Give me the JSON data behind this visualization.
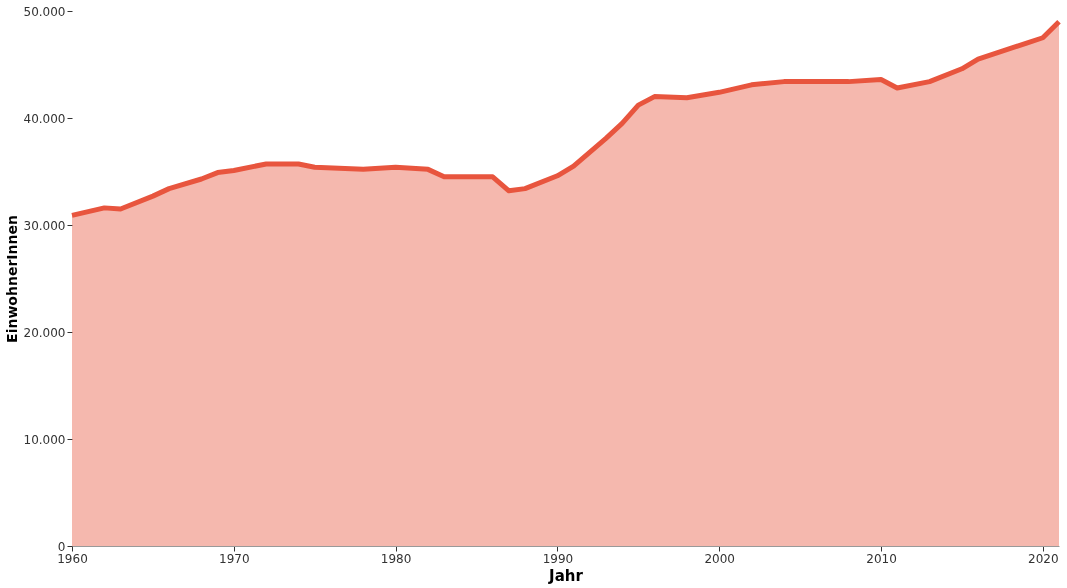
{
  "chart_data": {
    "type": "area",
    "xlabel": "Jahr",
    "ylabel": "EinwohnerInnen",
    "x": [
      1960,
      1962,
      1963,
      1965,
      1966,
      1968,
      1969,
      1970,
      1972,
      1974,
      1975,
      1978,
      1980,
      1982,
      1983,
      1986,
      1987,
      1988,
      1990,
      1991,
      1993,
      1994,
      1995,
      1996,
      1998,
      2000,
      2002,
      2004,
      2006,
      2008,
      2010,
      2011,
      2013,
      2015,
      2016,
      2018,
      2019,
      2020,
      2021
    ],
    "series": [
      {
        "color": "#e8553e",
        "values": [
          30900,
          31600,
          31500,
          32700,
          33400,
          34300,
          34900,
          35100,
          35700,
          35700,
          35400,
          35200,
          35400,
          35200,
          34500,
          34500,
          33200,
          33400,
          34600,
          35500,
          38100,
          39500,
          41200,
          42000,
          41900,
          42400,
          43100,
          43400,
          43400,
          43400,
          43600,
          42800,
          43400,
          44600,
          45500,
          46500,
          47000,
          47500,
          49000
        ]
      }
    ],
    "xlim": [
      1960,
      2021
    ],
    "xticks": [
      1960,
      1970,
      1980,
      1990,
      2000,
      2010,
      2020
    ],
    "ylim": [
      0,
      50000
    ],
    "yticks": [
      {
        "value": 0,
        "label": "0"
      },
      {
        "value": 10000,
        "label": "10.000"
      },
      {
        "value": 20000,
        "label": "20.000"
      },
      {
        "value": 30000,
        "label": "30.000"
      },
      {
        "value": 40000,
        "label": "40.000"
      },
      {
        "value": 50000,
        "label": "50.000"
      }
    ],
    "grid": false
  }
}
